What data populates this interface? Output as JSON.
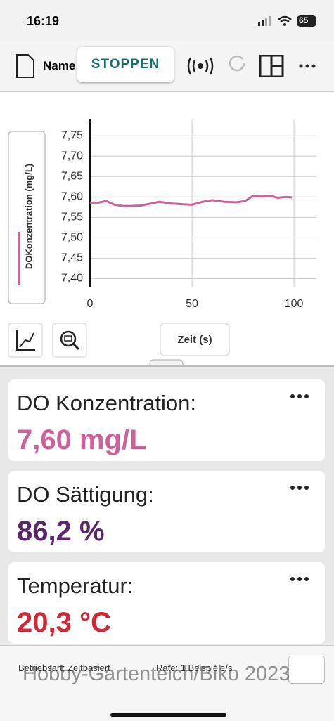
{
  "status_bar": {
    "time": "16:19",
    "battery": "65"
  },
  "toolbar": {
    "name": "Name",
    "stop_button": "STOPPEN"
  },
  "chart_data": {
    "type": "line",
    "y_label": "DOKonzentration (mg/L)",
    "x_label": "Zeit (s)",
    "x": [
      0,
      4,
      8,
      12,
      16,
      20,
      25,
      30,
      34,
      40,
      46,
      50,
      55,
      60,
      66,
      72,
      76,
      80,
      84,
      88,
      92,
      96,
      99
    ],
    "series": [
      {
        "name": "DOKonzentration (mg/L)",
        "color": "#d0609a",
        "values": [
          7.586,
          7.586,
          7.59,
          7.581,
          7.578,
          7.578,
          7.579,
          7.584,
          7.588,
          7.584,
          7.582,
          7.581,
          7.588,
          7.592,
          7.588,
          7.587,
          7.59,
          7.603,
          7.601,
          7.603,
          7.598,
          7.6,
          7.599
        ]
      }
    ],
    "xlim": [
      0,
      111
    ],
    "ylim": [
      7.38,
      7.79
    ],
    "xticks": [
      0,
      50,
      100
    ],
    "yticks": [
      {
        "value": 7.4,
        "label": "7,40"
      },
      {
        "value": 7.45,
        "label": "7,45"
      },
      {
        "value": 7.5,
        "label": "7,50"
      },
      {
        "value": 7.55,
        "label": "7,55"
      },
      {
        "value": 7.6,
        "label": "7,60"
      },
      {
        "value": 7.65,
        "label": "7,65"
      },
      {
        "value": 7.7,
        "label": "7,70"
      },
      {
        "value": 7.75,
        "label": "7,75"
      }
    ],
    "grid": true
  },
  "meters": [
    {
      "label": "DO Konzentration:",
      "value": "7,60 mg/L",
      "color": "#d0609a"
    },
    {
      "label": "DO Sättigung:",
      "value": "86,2 %",
      "color": "#58286a"
    },
    {
      "label": "Temperatur:",
      "value": "20,3 °C",
      "color": "#d02838"
    }
  ],
  "footer": {
    "mode": "Betriebsart: Zeitbasiert",
    "rate": "Rate: 1 Beispiele/s",
    "watermark": "Hobby-Gartenteich/Biko 2023"
  }
}
